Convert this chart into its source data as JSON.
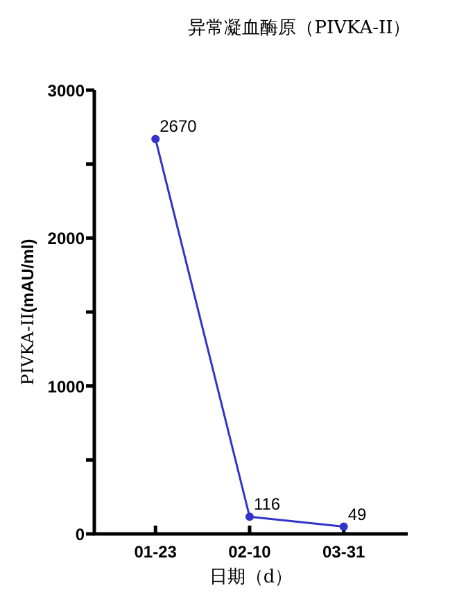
{
  "chart_data": {
    "type": "line",
    "title": "异常凝血酶原（PIVKA-II）",
    "xlabel": "日期（d）",
    "ylabel": "PIVKA-II**(mAU/ml)**",
    "categories": [
      "01-23",
      "02-10",
      "03-31"
    ],
    "series": [
      {
        "color": "#3333cc",
        "values": [
          2670,
          116,
          49
        ]
      }
    ],
    "ylim": [
      0,
      3000
    ],
    "yticks": [
      0,
      {
        "value": 500,
        "label": null
      },
      1000,
      {
        "value": 1500,
        "label": null
      },
      2000,
      {
        "value": 2500,
        "label": null
      },
      3000
    ],
    "data_labels": true,
    "marker": "circle",
    "line_style": "solid"
  }
}
